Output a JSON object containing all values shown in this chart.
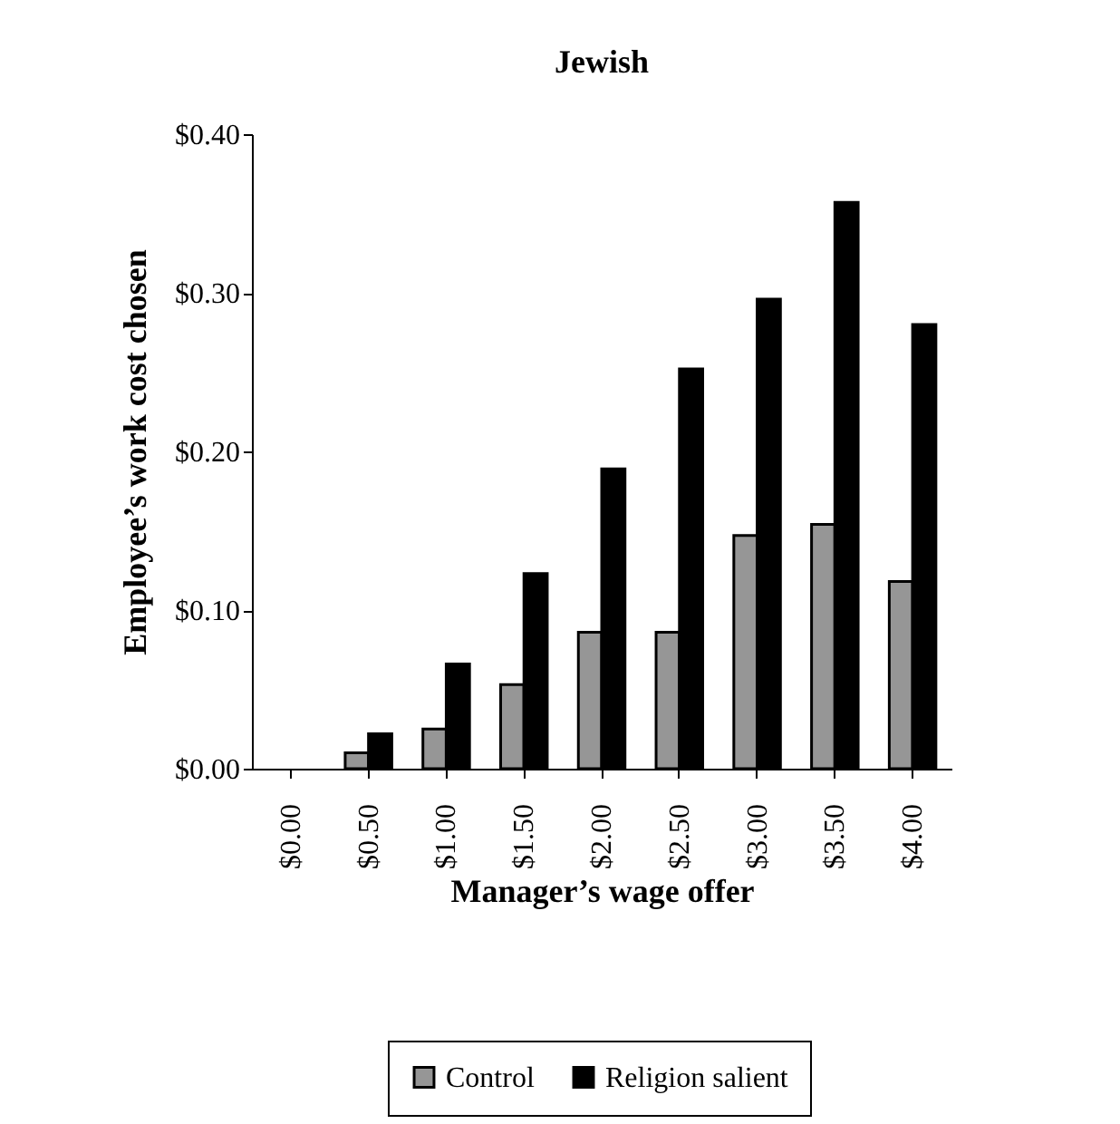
{
  "chart_data": {
    "type": "bar",
    "title": "Jewish",
    "xlabel": "Manager’s wage offer",
    "ylabel": "Employee’s work cost chosen",
    "categories": [
      "$0.00",
      "$0.50",
      "$1.00",
      "$1.50",
      "$2.00",
      "$2.50",
      "$3.00",
      "$3.50",
      "$4.00"
    ],
    "series": [
      {
        "name": "Control",
        "color": "#969696",
        "values": [
          null,
          0.01,
          0.025,
          0.053,
          0.086,
          0.086,
          0.147,
          0.154,
          0.118
        ]
      },
      {
        "name": "Religion salient",
        "color": "#000000",
        "values": [
          null,
          0.022,
          0.066,
          0.123,
          0.189,
          0.252,
          0.296,
          0.357,
          0.28
        ]
      }
    ],
    "ylim": [
      0,
      0.4
    ],
    "yticks": [
      {
        "value": 0,
        "label": "$0.00"
      },
      {
        "value": 0.1,
        "label": "$0.10"
      },
      {
        "value": 0.2,
        "label": "$0.20"
      },
      {
        "value": 0.3,
        "label": "$0.30"
      },
      {
        "value": 0.4,
        "label": "$0.40"
      }
    ],
    "grid": false,
    "legend": "bottom"
  }
}
